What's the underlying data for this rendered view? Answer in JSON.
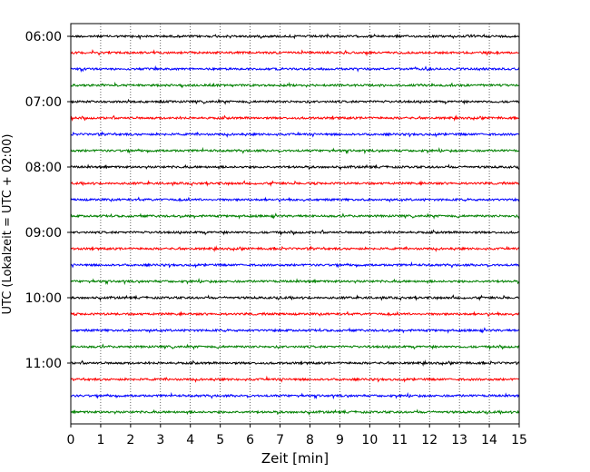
{
  "chart_data": {
    "type": "line",
    "xlabel": "Zeit  [min]",
    "ylabel": "UTC (Lokalzeit = UTC + 02:00)",
    "xlim": [
      0,
      15
    ],
    "x_ticks": [
      "0",
      "1",
      "2",
      "3",
      "4",
      "5",
      "6",
      "7",
      "8",
      "9",
      "10",
      "11",
      "12",
      "13",
      "14",
      "15"
    ],
    "y_ticks": [
      "06:00",
      "07:00",
      "08:00",
      "09:00",
      "10:00",
      "11:00"
    ],
    "grid": "vertical dotted at each minute",
    "trace_interval_minutes": 15,
    "trace_start_times": [
      "06:00",
      "06:15",
      "06:30",
      "06:45",
      "07:00",
      "07:15",
      "07:30",
      "07:45",
      "08:00",
      "08:15",
      "08:30",
      "08:45",
      "09:00",
      "09:15",
      "09:30",
      "09:45",
      "10:00",
      "10:15",
      "10:30",
      "10:45",
      "11:00",
      "11:15",
      "11:30",
      "11:45"
    ],
    "trace_colors": [
      "#000000",
      "#ff0000",
      "#0000ff",
      "#008000"
    ]
  }
}
